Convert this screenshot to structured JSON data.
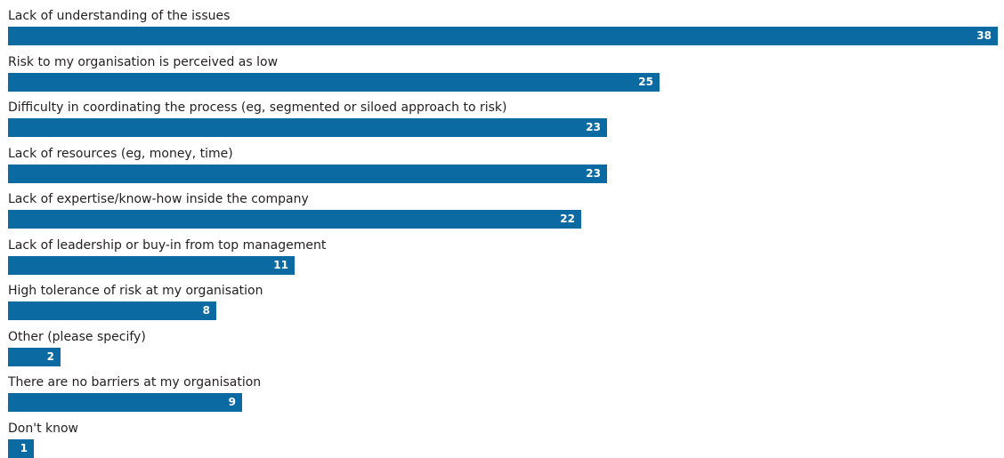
{
  "chart_data": {
    "type": "bar",
    "orientation": "horizontal",
    "title": "",
    "xlabel": "",
    "ylabel": "",
    "xlim": [
      0,
      38
    ],
    "grid": false,
    "data_labels": true,
    "bar_color": "#0a6aa1",
    "categories": [
      "Lack of understanding of the issues",
      "Risk to my organisation is perceived as low",
      "Difficulty in coordinating the process (eg, segmented or siloed approach to risk)",
      "Lack of resources (eg, money, time)",
      "Lack of expertise/know-how inside the company",
      "Lack of leadership or buy-in from top management",
      "High tolerance of risk at my organisation",
      "Other (please specify)",
      "There are no barriers at my organisation",
      "Don't know"
    ],
    "values": [
      38,
      25,
      23,
      23,
      22,
      11,
      8,
      2,
      9,
      1
    ]
  }
}
